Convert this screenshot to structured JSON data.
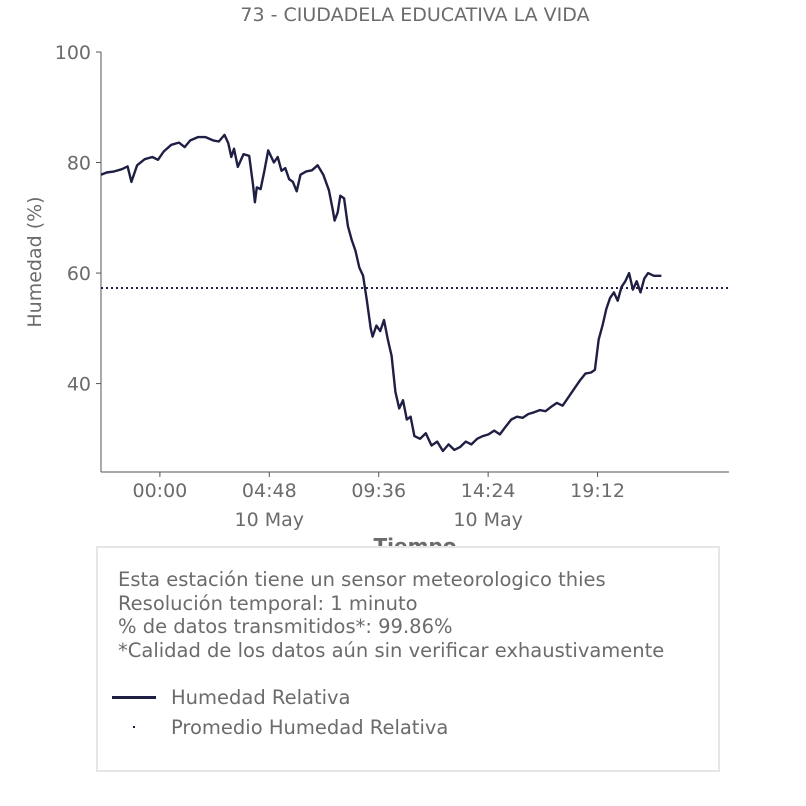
{
  "chart_data": {
    "type": "line",
    "title": "73 - CIUDADELA EDUCATIVA LA VIDA",
    "xlabel": "Tiempo",
    "ylabel": "Humedad (%)",
    "ylim": [
      24,
      100
    ],
    "xlim": [
      "2023-05-09T21:25",
      "2023-05-11T00:58"
    ],
    "yticks": [
      40,
      60,
      80,
      100
    ],
    "xticks": [
      {
        "time": "2023-05-10T00:00",
        "label": "00:00",
        "sublabel": ""
      },
      {
        "time": "2023-05-10T04:48",
        "label": "04:48",
        "sublabel": "10 May"
      },
      {
        "time": "2023-05-10T09:36",
        "label": "09:36",
        "sublabel": ""
      },
      {
        "time": "2023-05-10T14:24",
        "label": "14:24",
        "sublabel": "10 May"
      },
      {
        "time": "2023-05-10T19:12",
        "label": "19:12",
        "sublabel": ""
      }
    ],
    "grid": false,
    "series": [
      {
        "name": "Humedad Relativa",
        "color": "#1f1f45",
        "style": "solid",
        "points": [
          [
            "2023-05-09T21:25",
            77.8
          ],
          [
            "2023-05-09T21:40",
            78.2
          ],
          [
            "2023-05-09T22:00",
            78.4
          ],
          [
            "2023-05-09T22:20",
            78.8
          ],
          [
            "2023-05-09T22:35",
            79.3
          ],
          [
            "2023-05-09T22:45",
            76.5
          ],
          [
            "2023-05-09T23:00",
            79.5
          ],
          [
            "2023-05-09T23:20",
            80.6
          ],
          [
            "2023-05-09T23:40",
            81.0
          ],
          [
            "2023-05-09T23:55",
            80.5
          ],
          [
            "2023-05-10T00:10",
            82.0
          ],
          [
            "2023-05-10T00:30",
            83.2
          ],
          [
            "2023-05-10T00:50",
            83.6
          ],
          [
            "2023-05-10T01:05",
            82.8
          ],
          [
            "2023-05-10T01:20",
            84.0
          ],
          [
            "2023-05-10T01:40",
            84.6
          ],
          [
            "2023-05-10T02:00",
            84.6
          ],
          [
            "2023-05-10T02:20",
            84.0
          ],
          [
            "2023-05-10T02:35",
            83.8
          ],
          [
            "2023-05-10T02:50",
            85.0
          ],
          [
            "2023-05-10T03:00",
            83.5
          ],
          [
            "2023-05-10T03:08",
            81.0
          ],
          [
            "2023-05-10T03:15",
            82.5
          ],
          [
            "2023-05-10T03:25",
            79.2
          ],
          [
            "2023-05-10T03:40",
            81.5
          ],
          [
            "2023-05-10T03:55",
            81.2
          ],
          [
            "2023-05-10T04:05",
            76.0
          ],
          [
            "2023-05-10T04:10",
            72.8
          ],
          [
            "2023-05-10T04:15",
            75.5
          ],
          [
            "2023-05-10T04:25",
            75.2
          ],
          [
            "2023-05-10T04:35",
            78.5
          ],
          [
            "2023-05-10T04:45",
            82.2
          ],
          [
            "2023-05-10T05:00",
            80.0
          ],
          [
            "2023-05-10T05:10",
            81.0
          ],
          [
            "2023-05-10T05:20",
            78.5
          ],
          [
            "2023-05-10T05:30",
            79.0
          ],
          [
            "2023-05-10T05:40",
            77.0
          ],
          [
            "2023-05-10T05:50",
            76.5
          ],
          [
            "2023-05-10T06:00",
            74.8
          ],
          [
            "2023-05-10T06:10",
            77.8
          ],
          [
            "2023-05-10T06:25",
            78.4
          ],
          [
            "2023-05-10T06:40",
            78.6
          ],
          [
            "2023-05-10T06:55",
            79.5
          ],
          [
            "2023-05-10T07:10",
            77.8
          ],
          [
            "2023-05-10T07:25",
            75.0
          ],
          [
            "2023-05-10T07:35",
            71.5
          ],
          [
            "2023-05-10T07:40",
            69.5
          ],
          [
            "2023-05-10T07:48",
            71.0
          ],
          [
            "2023-05-10T07:55",
            74.0
          ],
          [
            "2023-05-10T08:05",
            73.5
          ],
          [
            "2023-05-10T08:15",
            68.5
          ],
          [
            "2023-05-10T08:25",
            66.0
          ],
          [
            "2023-05-10T08:35",
            64.0
          ],
          [
            "2023-05-10T08:45",
            61.0
          ],
          [
            "2023-05-10T08:55",
            59.5
          ],
          [
            "2023-05-10T09:05",
            55.0
          ],
          [
            "2023-05-10T09:15",
            50.0
          ],
          [
            "2023-05-10T09:20",
            48.5
          ],
          [
            "2023-05-10T09:30",
            50.5
          ],
          [
            "2023-05-10T09:40",
            49.5
          ],
          [
            "2023-05-10T09:50",
            51.5
          ],
          [
            "2023-05-10T10:00",
            48.0
          ],
          [
            "2023-05-10T10:10",
            45.0
          ],
          [
            "2023-05-10T10:20",
            38.5
          ],
          [
            "2023-05-10T10:30",
            35.5
          ],
          [
            "2023-05-10T10:40",
            37.0
          ],
          [
            "2023-05-10T10:50",
            33.5
          ],
          [
            "2023-05-10T11:00",
            34.0
          ],
          [
            "2023-05-10T11:10",
            30.5
          ],
          [
            "2023-05-10T11:25",
            30.0
          ],
          [
            "2023-05-10T11:40",
            31.0
          ],
          [
            "2023-05-10T11:55",
            28.8
          ],
          [
            "2023-05-10T12:10",
            29.5
          ],
          [
            "2023-05-10T12:25",
            27.8
          ],
          [
            "2023-05-10T12:40",
            29.0
          ],
          [
            "2023-05-10T12:55",
            28.0
          ],
          [
            "2023-05-10T13:10",
            28.5
          ],
          [
            "2023-05-10T13:25",
            29.5
          ],
          [
            "2023-05-10T13:40",
            29.0
          ],
          [
            "2023-05-10T13:55",
            30.0
          ],
          [
            "2023-05-10T14:10",
            30.5
          ],
          [
            "2023-05-10T14:25",
            30.8
          ],
          [
            "2023-05-10T14:40",
            31.5
          ],
          [
            "2023-05-10T14:55",
            30.8
          ],
          [
            "2023-05-10T15:10",
            32.2
          ],
          [
            "2023-05-10T15:25",
            33.5
          ],
          [
            "2023-05-10T15:40",
            34.0
          ],
          [
            "2023-05-10T15:55",
            33.8
          ],
          [
            "2023-05-10T16:10",
            34.5
          ],
          [
            "2023-05-10T16:25",
            34.8
          ],
          [
            "2023-05-10T16:40",
            35.2
          ],
          [
            "2023-05-10T16:55",
            35.0
          ],
          [
            "2023-05-10T17:10",
            35.8
          ],
          [
            "2023-05-10T17:25",
            36.5
          ],
          [
            "2023-05-10T17:40",
            36.0
          ],
          [
            "2023-05-10T17:55",
            37.5
          ],
          [
            "2023-05-10T18:10",
            39.0
          ],
          [
            "2023-05-10T18:25",
            40.5
          ],
          [
            "2023-05-10T18:40",
            41.8
          ],
          [
            "2023-05-10T18:55",
            42.0
          ],
          [
            "2023-05-10T19:05",
            42.5
          ],
          [
            "2023-05-10T19:15",
            48.0
          ],
          [
            "2023-05-10T19:25",
            50.5
          ],
          [
            "2023-05-10T19:35",
            53.5
          ],
          [
            "2023-05-10T19:45",
            55.5
          ],
          [
            "2023-05-10T19:55",
            56.5
          ],
          [
            "2023-05-10T20:05",
            55.0
          ],
          [
            "2023-05-10T20:15",
            57.5
          ],
          [
            "2023-05-10T20:25",
            58.5
          ],
          [
            "2023-05-10T20:35",
            60.0
          ],
          [
            "2023-05-10T20:45",
            57.0
          ],
          [
            "2023-05-10T20:55",
            58.5
          ],
          [
            "2023-05-10T21:05",
            56.5
          ],
          [
            "2023-05-10T21:15",
            59.0
          ],
          [
            "2023-05-10T21:25",
            60.0
          ],
          [
            "2023-05-10T21:40",
            59.5
          ],
          [
            "2023-05-10T22:00",
            59.5
          ]
        ]
      },
      {
        "name": "Promedio Humedad Relativa",
        "color": "#1f1f45",
        "style": "dotted",
        "constant": 57.3
      }
    ]
  },
  "info": {
    "lines": [
      "Esta estación tiene un sensor meteorologico thies",
      "Resolución temporal: 1 minuto",
      "% de datos transmitidos*: 99.86%",
      "*Calidad de los datos aún sin verificar exhaustivamente"
    ]
  },
  "legend": {
    "items": [
      {
        "label": "Humedad Relativa",
        "style": "solid"
      },
      {
        "label": "Promedio Humedad Relativa",
        "style": "dotted"
      }
    ]
  }
}
